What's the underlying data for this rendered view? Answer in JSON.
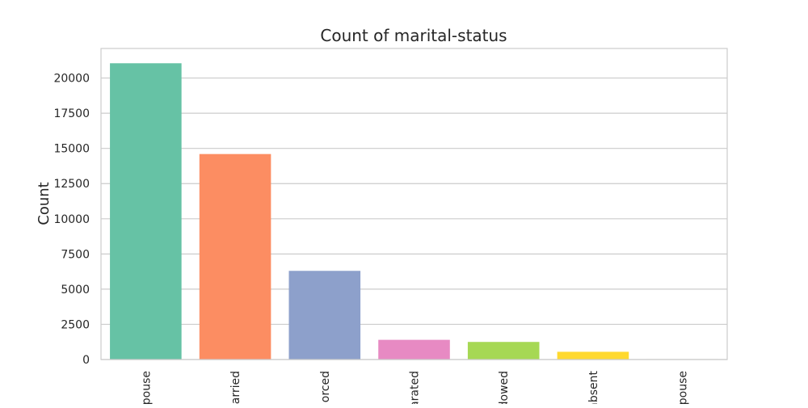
{
  "chart_data": {
    "type": "bar",
    "title": "Count of marital-status",
    "xlabel": "",
    "ylabel": "Count",
    "categories": [
      "pouse",
      "arried",
      "orced",
      "arated",
      "dowed",
      "absent",
      "pouse"
    ],
    "values": [
      21050,
      14600,
      6300,
      1400,
      1250,
      550,
      30
    ],
    "colors": [
      "#66c2a5",
      "#fc8d62",
      "#8da0cb",
      "#e78ac3",
      "#a6d854",
      "#ffd92f",
      "#e5c494"
    ],
    "ylim": [
      0,
      22100
    ],
    "yticks": [
      0,
      2500,
      5000,
      7500,
      10000,
      12500,
      15000,
      17500,
      20000
    ],
    "grid": true,
    "legend": "none"
  }
}
